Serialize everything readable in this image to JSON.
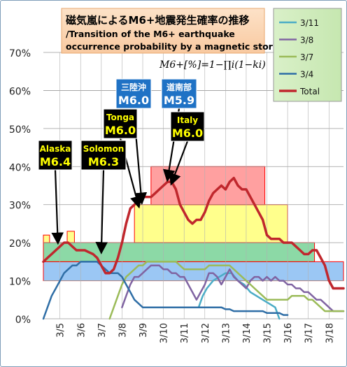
{
  "chart_data": {
    "type": "line",
    "title": "磁気嵐によるM6+地震発生確率の推移",
    "subtitle_line1": "/Transition of the M6+ earthquake",
    "subtitle_line2": "occurrence probability by a magnetic storm.",
    "formula": "M6+[%]=1−∏i(1−ki)",
    "y_axis": {
      "min": 0,
      "max": 70,
      "step": 10,
      "unit": "%",
      "tick_labels": [
        "0%",
        "10%",
        "20%",
        "30%",
        "40%",
        "50%",
        "60%",
        "70%"
      ]
    },
    "x_axis": {
      "min": 4.2,
      "max": 18.7,
      "tick_labels": [
        "3/5",
        "3/6",
        "3/7",
        "3/8",
        "3/9",
        "3/10",
        "3/11",
        "3/12",
        "3/13",
        "3/14",
        "3/15",
        "3/16",
        "3/17",
        "3/18"
      ]
    },
    "grid": true,
    "legend_position": "top-right",
    "bands": [
      {
        "x0": 4.2,
        "x1": 18.7,
        "y0": 10,
        "y1": 15,
        "color": "#7ab4f0"
      },
      {
        "x0": 4.2,
        "x1": 17.3,
        "y0": 15,
        "y1": 20,
        "color": "#66cc88"
      },
      {
        "x0": 4.2,
        "x1": 4.5,
        "y0": 20,
        "y1": 22,
        "color": "#ffff66"
      },
      {
        "x0": 5.35,
        "x1": 5.7,
        "y0": 20,
        "y1": 23,
        "color": "#ffff66"
      },
      {
        "x0": 8.6,
        "x1": 16.0,
        "y0": 20,
        "y1": 30,
        "color": "#ffff66"
      },
      {
        "x0": 9.4,
        "x1": 14.9,
        "y0": 30,
        "y1": 40,
        "color": "#ff8080"
      }
    ],
    "series": [
      {
        "name": "3/11",
        "color": "#4bacc6",
        "width": 2.5,
        "x": [
          11.7,
          11.9,
          12.1,
          12.4,
          12.7,
          13.0,
          13.3,
          13.6,
          13.9,
          14.2,
          14.5,
          14.8,
          15.1,
          15.4,
          15.6
        ],
        "y": [
          3,
          6,
          8,
          10,
          11,
          12,
          12,
          10,
          9,
          7,
          6,
          5,
          4,
          3,
          0
        ]
      },
      {
        "name": "3/8",
        "color": "#8064a2",
        "width": 2.5,
        "x": [
          8.0,
          8.2,
          8.4,
          8.6,
          8.8,
          9.0,
          9.2,
          9.4,
          9.6,
          9.8,
          10.0,
          10.2,
          10.4,
          10.6,
          10.8,
          11.0,
          11.2,
          11.4,
          11.6,
          11.8,
          12.0,
          12.2,
          12.4,
          12.6,
          12.8,
          13.0,
          13.2,
          13.4,
          13.6,
          13.8,
          14.0,
          14.2,
          14.4,
          14.6,
          14.8,
          15.0,
          15.2,
          15.4,
          15.6,
          15.8,
          16.0,
          16.2,
          16.4,
          16.6,
          16.8,
          17.0,
          17.2,
          17.4,
          17.6,
          17.8,
          18.0,
          18.2,
          18.4,
          18.7
        ],
        "y": [
          3,
          6,
          9,
          11,
          11,
          12,
          13,
          14,
          14,
          14,
          13,
          13,
          12,
          12,
          11,
          11,
          9,
          7,
          5,
          7,
          9,
          12,
          12,
          11,
          9,
          11,
          13,
          11,
          10,
          9,
          8,
          10,
          11,
          11,
          10,
          11,
          10,
          11,
          10,
          10,
          9,
          9,
          8,
          8,
          7,
          7,
          6,
          5,
          5,
          4,
          3,
          2,
          2,
          2
        ]
      },
      {
        "name": "3/7",
        "color": "#9bbb59",
        "width": 2.5,
        "x": [
          7.4,
          7.6,
          7.8,
          8.0,
          8.2,
          8.4,
          8.6,
          8.8,
          9.0,
          9.2,
          9.4,
          9.6,
          9.8,
          10.0,
          10.2,
          10.4,
          10.6,
          10.8,
          11.0,
          11.2,
          11.4,
          11.6,
          11.8,
          12.0,
          12.2,
          12.4,
          12.6,
          12.8,
          13.0,
          13.2,
          13.4,
          13.6,
          13.8,
          14.0,
          14.2,
          14.4,
          14.6,
          14.8,
          15.0,
          15.2,
          15.4,
          15.6,
          15.8,
          16.0,
          16.2,
          16.4,
          16.6,
          16.8,
          17.0,
          17.2,
          17.4,
          17.6,
          17.8,
          18.0,
          18.2,
          18.4,
          18.7
        ],
        "y": [
          0,
          3,
          6,
          9,
          11,
          12,
          13,
          14,
          14,
          15,
          15,
          15,
          15,
          15,
          15,
          15,
          15,
          14,
          13,
          13,
          13,
          13,
          13,
          13,
          14,
          14,
          14,
          14,
          14,
          14,
          13,
          12,
          11,
          10,
          9,
          8,
          7,
          6,
          5,
          5,
          5,
          5,
          5,
          5,
          6,
          6,
          6,
          6,
          5,
          5,
          4,
          3,
          2,
          2,
          2,
          2,
          2
        ]
      },
      {
        "name": "3/4",
        "color": "#2f6ea6",
        "width": 2.5,
        "x": [
          4.2,
          4.4,
          4.6,
          4.8,
          5.0,
          5.2,
          5.4,
          5.6,
          5.8,
          6.0,
          6.2,
          6.4,
          6.6,
          6.8,
          7.0,
          7.2,
          7.4,
          7.6,
          7.8,
          8.0,
          8.2,
          8.4,
          8.6,
          8.8,
          9.0,
          9.2,
          9.4,
          9.6,
          9.8,
          10.0,
          10.2,
          10.4,
          10.6,
          10.8,
          11.0,
          11.2,
          11.4,
          11.6,
          11.8,
          12.0,
          12.2,
          12.4,
          12.6,
          12.8,
          13.0,
          13.2,
          13.4,
          13.6,
          13.8,
          14.0,
          14.2,
          14.4,
          14.6,
          14.8,
          15.0,
          15.2,
          15.4,
          15.6,
          15.8,
          16.0
        ],
        "y": [
          0,
          3,
          6,
          8,
          10,
          12,
          13,
          14,
          14,
          15,
          15,
          15,
          15,
          15,
          14,
          13,
          12,
          12,
          12,
          11,
          9,
          7,
          5,
          4,
          3,
          3,
          3,
          3,
          3,
          3,
          3,
          3,
          3,
          3,
          3,
          3,
          3,
          3,
          3,
          3,
          3,
          3,
          3,
          3,
          2.5,
          2.5,
          2,
          2,
          2,
          2,
          2,
          2,
          2,
          2,
          1.5,
          1.5,
          1.5,
          1.5,
          1,
          1
        ]
      },
      {
        "name": "Total",
        "color": "#c0272d",
        "width": 3.5,
        "x": [
          4.2,
          4.4,
          4.6,
          4.8,
          5.0,
          5.2,
          5.4,
          5.6,
          5.8,
          6.0,
          6.2,
          6.4,
          6.6,
          6.8,
          7.0,
          7.2,
          7.4,
          7.6,
          7.8,
          8.0,
          8.2,
          8.4,
          8.6,
          8.8,
          9.0,
          9.2,
          9.4,
          9.6,
          9.8,
          10.0,
          10.2,
          10.4,
          10.6,
          10.8,
          11.0,
          11.2,
          11.4,
          11.6,
          11.8,
          12.0,
          12.2,
          12.4,
          12.6,
          12.8,
          13.0,
          13.2,
          13.4,
          13.6,
          13.8,
          14.0,
          14.2,
          14.4,
          14.6,
          14.8,
          15.0,
          15.2,
          15.4,
          15.6,
          15.8,
          16.0,
          16.2,
          16.4,
          16.6,
          16.8,
          17.0,
          17.2,
          17.4,
          17.6,
          17.8,
          18.0,
          18.2,
          18.4,
          18.7
        ],
        "y": [
          15,
          16,
          17,
          18,
          19,
          20,
          20,
          19,
          18,
          18,
          18,
          17.5,
          17,
          16,
          14,
          12,
          12,
          13,
          16,
          20,
          25,
          29,
          30,
          31,
          32,
          32,
          32,
          33,
          34,
          35,
          36,
          36,
          34,
          30,
          28,
          26,
          25,
          26,
          26,
          28,
          31,
          33,
          34,
          35,
          34,
          36,
          37,
          35,
          34,
          34,
          32,
          30,
          28,
          26,
          22,
          21,
          21,
          21,
          20,
          20,
          20,
          19,
          18,
          17,
          17,
          18,
          18,
          16,
          14,
          10,
          8,
          8,
          8
        ]
      }
    ],
    "annotations": [
      {
        "label": "Alaska",
        "mag": "M6.4",
        "box_color": "#000000",
        "text_color": "#ffff00",
        "x": 4.9,
        "y": 19.5
      },
      {
        "label": "Solomon",
        "mag": "M6.3",
        "box_color": "#000000",
        "text_color": "#ffff00",
        "x": 7.0,
        "y": 17
      },
      {
        "label": "Tonga",
        "mag": "M6.0",
        "box_color": "#000000",
        "text_color": "#ffff00",
        "x": 8.8,
        "y": 29
      },
      {
        "label": "三陸沖",
        "mag": "M6.0",
        "box_color": "#1f72c5",
        "text_color": "#ffffff",
        "x": 8.95,
        "y": 30
      },
      {
        "label": "道南部",
        "mag": "M5.9",
        "box_color": "#1f72c5",
        "text_color": "#ffffff",
        "x": 10.2,
        "y": 36
      },
      {
        "label": "Italy",
        "mag": "M6.0",
        "box_color": "#000000",
        "text_color": "#ffff00",
        "x": 10.4,
        "y": 35
      }
    ]
  }
}
